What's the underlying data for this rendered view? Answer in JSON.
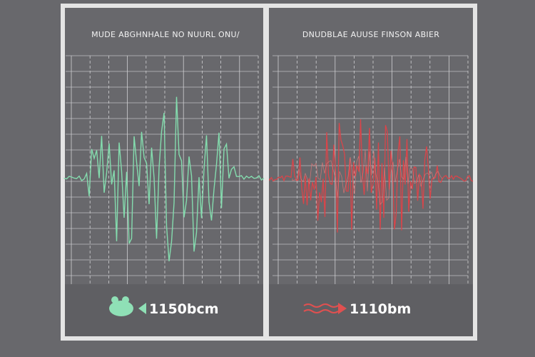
{
  "panels": [
    {
      "title": "MUDE ABGHNHALE NO NUURL ONU/",
      "reading": "1150bcm"
    },
    {
      "title": "DNUDBLAE AUUSE FINSON ABIER",
      "reading": "1110bm"
    }
  ]
}
